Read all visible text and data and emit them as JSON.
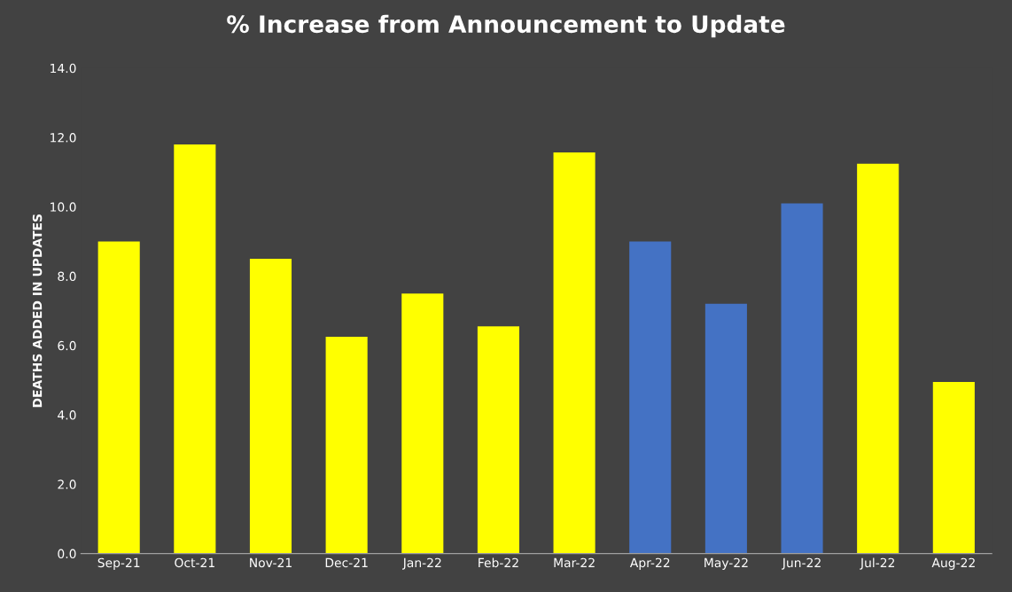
{
  "chart_data": {
    "type": "bar",
    "title": "% Increase from Announcement to Update",
    "ylabel": "DEATHS ADDED IN UPDATES",
    "categories": [
      "Sep-21",
      "Oct-21",
      "Nov-21",
      "Dec-21",
      "Jan-22",
      "Feb-22",
      "Mar-22",
      "Apr-22",
      "May-22",
      "Jun-22",
      "Jul-22",
      "Aug-22"
    ],
    "values": [
      9.0,
      11.8,
      8.5,
      6.25,
      7.5,
      6.55,
      11.57,
      9.0,
      7.2,
      10.1,
      11.24,
      4.95
    ],
    "colors": [
      "#ffff00",
      "#ffff00",
      "#ffff00",
      "#ffff00",
      "#ffff00",
      "#ffff00",
      "#ffff00",
      "#4472c4",
      "#4472c4",
      "#4472c4",
      "#ffff00",
      "#ffff00"
    ],
    "ylim": [
      0,
      14
    ],
    "yticks": [
      {
        "value": 0,
        "label": "0.0"
      },
      {
        "value": 2,
        "label": "2.0"
      },
      {
        "value": 4,
        "label": "4.0"
      },
      {
        "value": 6,
        "label": "6.0"
      },
      {
        "value": 8,
        "label": "8.0"
      },
      {
        "value": 10,
        "label": "10.0"
      },
      {
        "value": 12,
        "label": "12.0"
      },
      {
        "value": 14,
        "label": "14.0"
      }
    ],
    "grid": false,
    "legend": false
  }
}
